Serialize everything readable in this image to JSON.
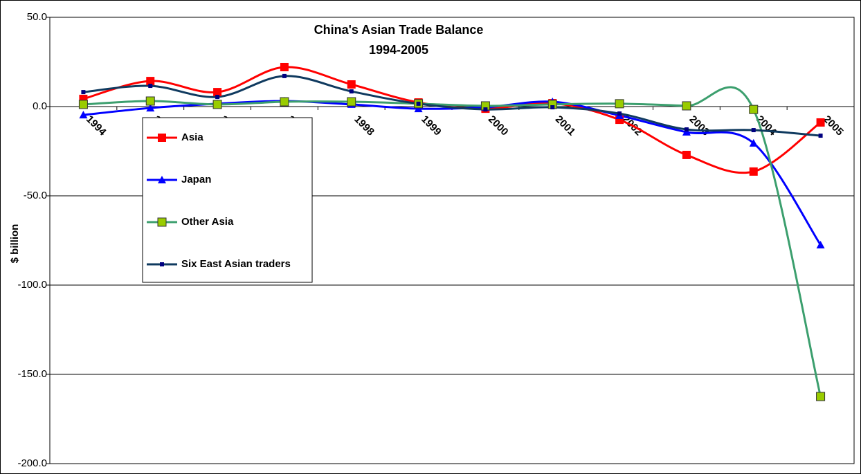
{
  "chart_data": {
    "type": "line",
    "title": "China's Asian Trade Balance",
    "subtitle": "1994-2005",
    "y_label": "$ billion",
    "categories": [
      "1994",
      "1995",
      "1996",
      "1997",
      "1998",
      "1999",
      "2000",
      "2001",
      "2002",
      "2003",
      "2004",
      "2005"
    ],
    "series": [
      {
        "name": "Asia",
        "color": "#ff0000",
        "marker": "square",
        "marker_fill": "#ff0000",
        "values": [
          4.3,
          14.3,
          8.1,
          22.1,
          12.4,
          2.3,
          -1.2,
          1.9,
          -7.4,
          -27.1,
          -36.4,
          -8.9
        ]
      },
      {
        "name": "Japan",
        "color": "#0000ff",
        "marker": "triangle",
        "marker_fill": "#0000ff",
        "values": [
          -4.7,
          -0.8,
          1.6,
          3.1,
          1.2,
          -1.2,
          -0.4,
          2.7,
          -5.0,
          -14.3,
          -20.5,
          -77.5
        ]
      },
      {
        "name": "Other Asia",
        "color": "#3c9f6e",
        "marker": "square",
        "marker_fill": "#99cc00",
        "values": [
          1.2,
          3.1,
          1.2,
          2.7,
          2.7,
          1.6,
          0.4,
          1.2,
          1.6,
          0.4,
          -1.6,
          -162.4
        ]
      },
      {
        "name": "Six East Asian traders",
        "color": "#0f3a5f",
        "marker": "small-square",
        "marker_fill": "#000080",
        "values": [
          8.1,
          11.6,
          5.4,
          17.1,
          8.5,
          1.6,
          -1.6,
          -0.4,
          -3.9,
          -12.8,
          -13.2,
          -16.3
        ]
      }
    ],
    "ylim": [
      -200,
      50
    ],
    "yticks": [
      {
        "value": -200,
        "label": "-200.0"
      },
      {
        "value": -150,
        "label": "-150.0"
      },
      {
        "value": -100,
        "label": "-100.0"
      },
      {
        "value": -50,
        "label": "-50.0"
      },
      {
        "value": 0,
        "label": "0.0"
      },
      {
        "value": 50,
        "label": "50.0"
      }
    ],
    "grid": true,
    "smooth": true
  }
}
